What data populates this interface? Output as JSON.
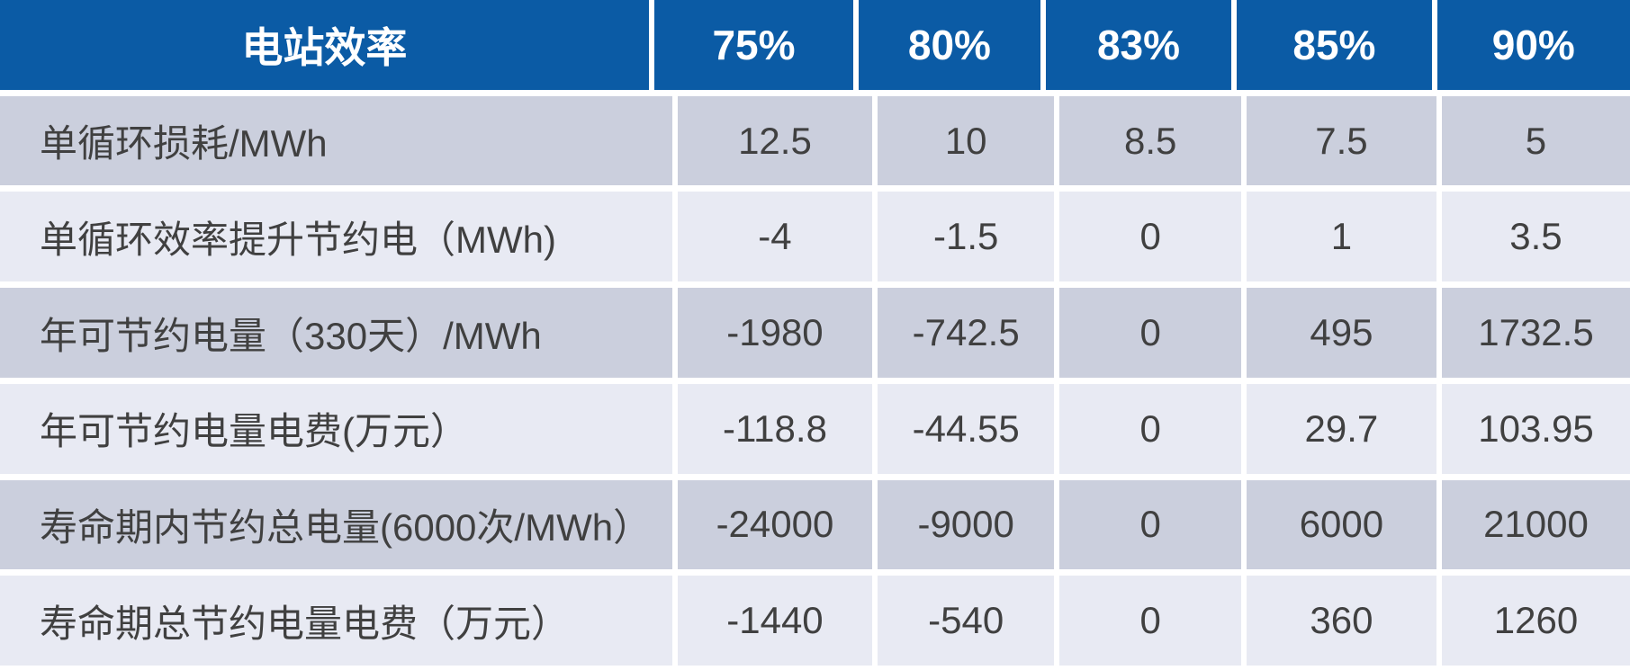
{
  "chart_data": {
    "type": "table",
    "title": "电站效率",
    "columns": [
      "75%",
      "80%",
      "83%",
      "85%",
      "90%"
    ],
    "rows": [
      {
        "label": "单循环损耗/MWh",
        "values": [
          12.5,
          10,
          8.5,
          7.5,
          5
        ]
      },
      {
        "label": "单循环效率提升节约电（MWh)",
        "values": [
          -4,
          -1.5,
          0,
          1,
          3.5
        ]
      },
      {
        "label": "年可节约电量（330天）/MWh",
        "values": [
          -1980,
          -742.5,
          0,
          495,
          1732.5
        ]
      },
      {
        "label": "年可节约电量电费(万元）",
        "values": [
          -118.8,
          -44.55,
          0,
          29.7,
          103.95
        ]
      },
      {
        "label": "寿命期内节约总电量(6000次/MWh）",
        "values": [
          -24000,
          -9000,
          0,
          6000,
          21000
        ]
      },
      {
        "label": "寿命期总节约电量电费（万元）",
        "values": [
          -1440,
          -540,
          0,
          360,
          1260
        ]
      }
    ],
    "colors": {
      "header_bg": "#0B5BA5",
      "header_text": "#FFFFFF",
      "row_band_dark": "#CBCFDD",
      "row_band_light": "#E8EAF3",
      "body_text": "#404040"
    }
  }
}
